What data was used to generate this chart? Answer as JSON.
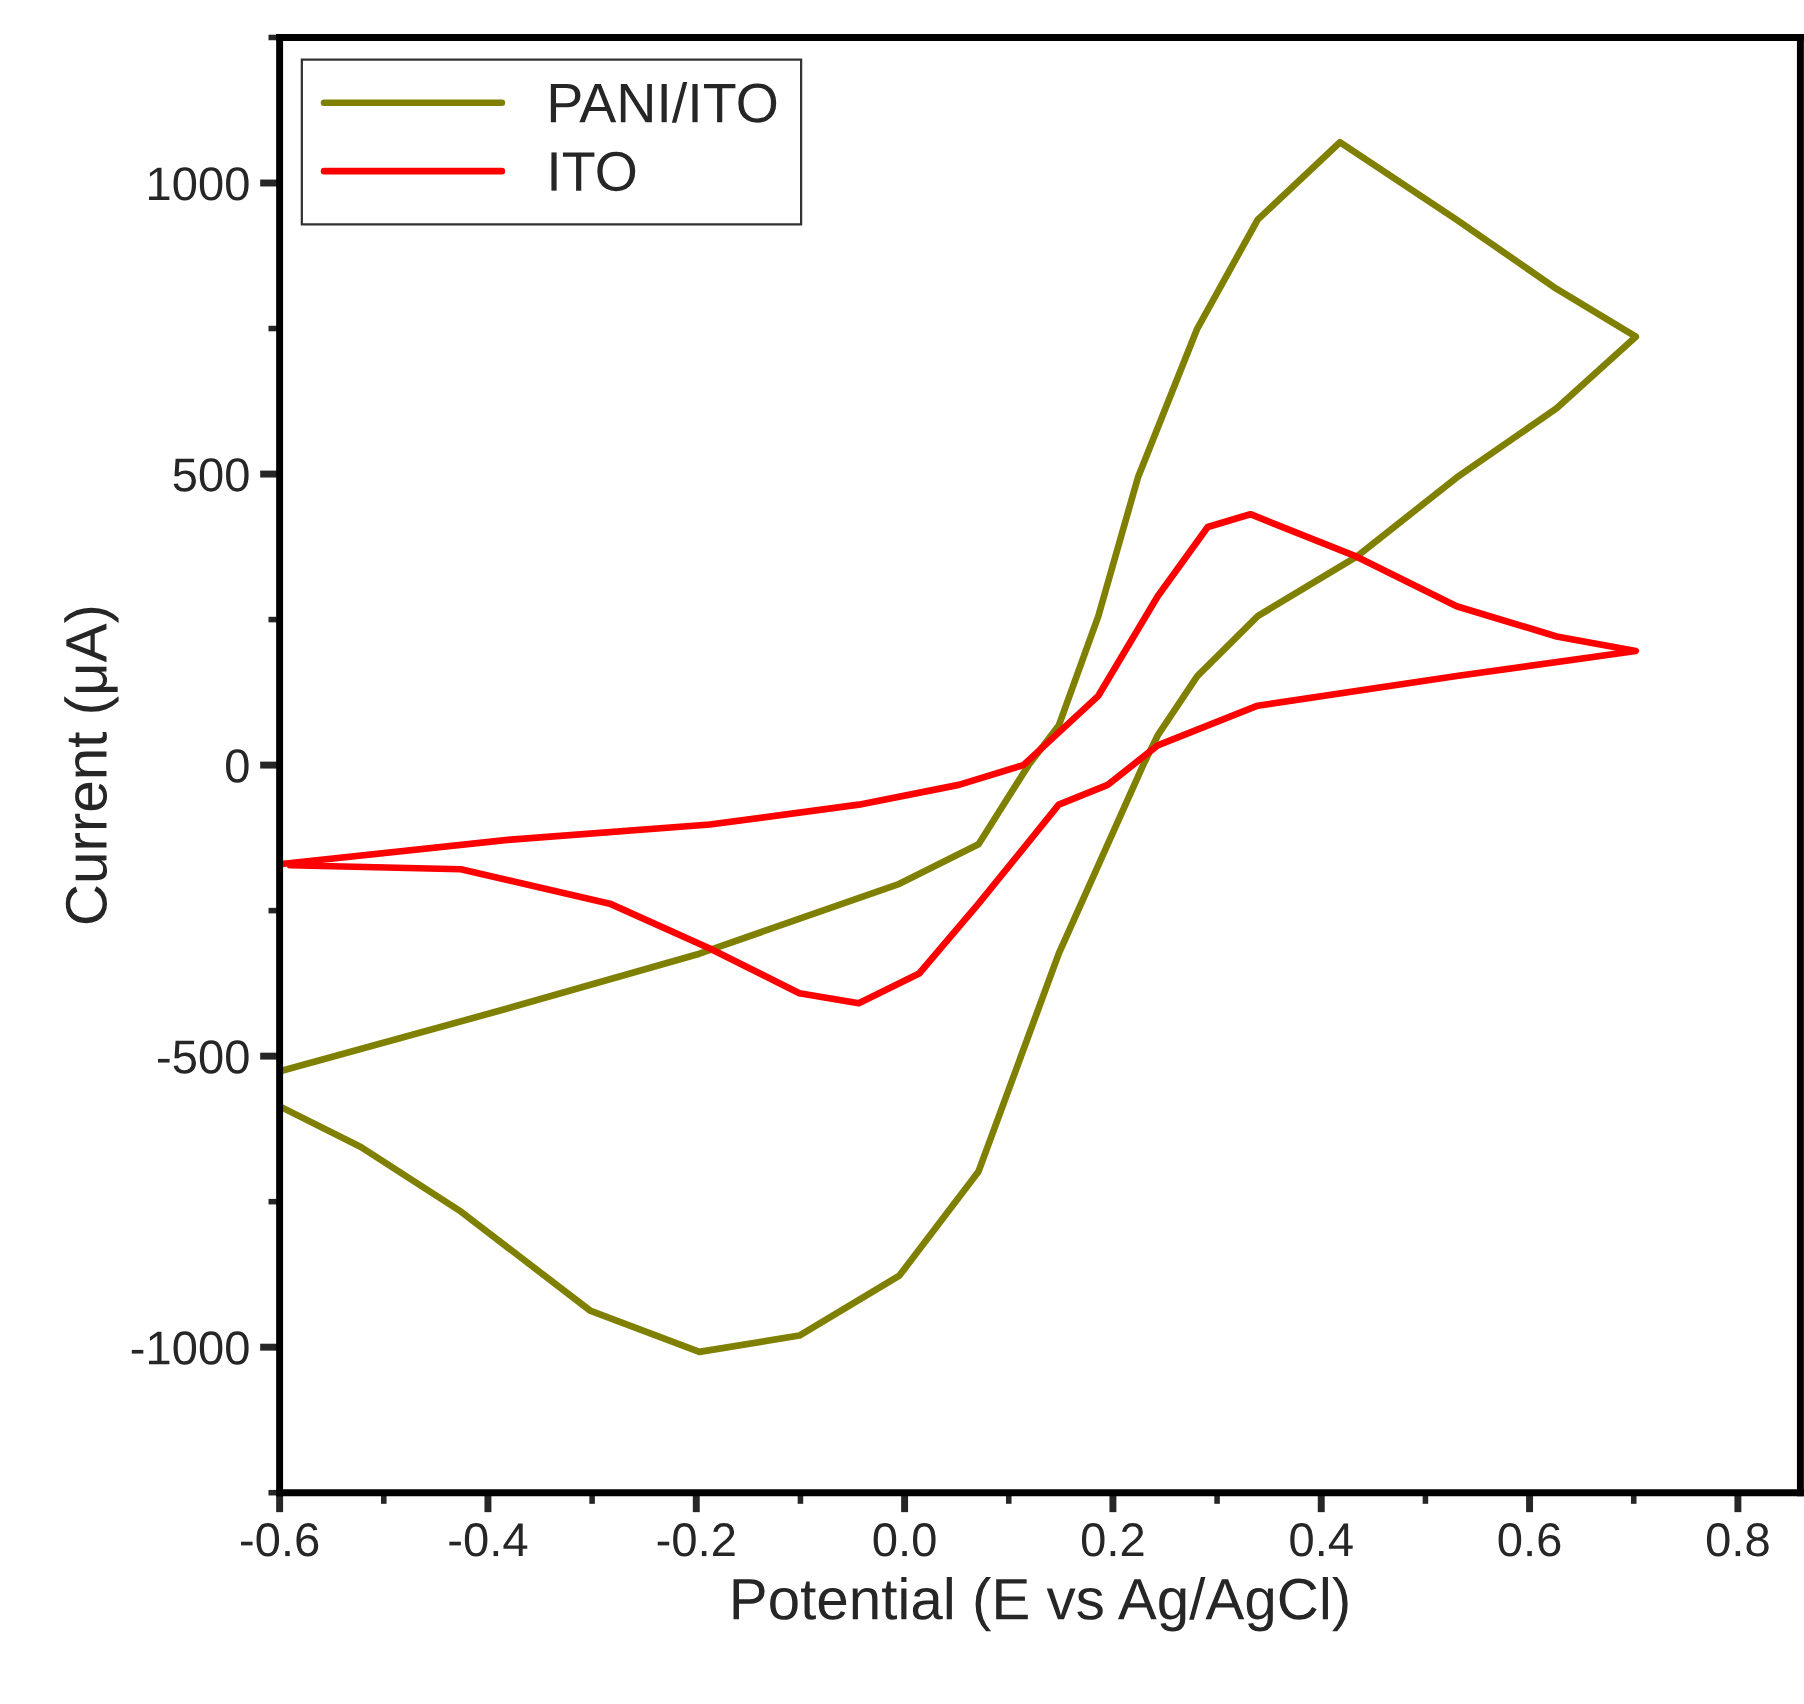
{
  "chart_data": {
    "type": "line",
    "xlabel": "Potential (E vs Ag/AgCl)",
    "ylabel": "Current (μA)",
    "xlim": [
      -0.6,
      0.86
    ],
    "ylim": [
      -1250,
      1250
    ],
    "xticks": [
      -0.6,
      -0.4,
      -0.2,
      {
        "value": 0,
        "label": "0.0"
      },
      0.2,
      0.4,
      0.6,
      0.8
    ],
    "yticks": [
      -1000,
      -500,
      0,
      500,
      1000
    ],
    "grid": false,
    "legend": "top left",
    "marker": "none",
    "line_style": "solid",
    "series": [
      {
        "name": "PANI/ITO",
        "color": "#808000",
        "x": [
          -0.598,
          -0.397,
          -0.197,
          -0.005,
          0.071,
          0.119,
          0.148,
          0.186,
          0.224,
          0.281,
          0.339,
          0.418,
          0.53,
          0.626,
          0.702,
          0.626,
          0.53,
          0.434,
          0.339,
          0.281,
          0.243,
          0.229,
          0.148,
          0.071,
          -0.005,
          -0.101,
          -0.197,
          -0.302,
          -0.426,
          -0.522,
          -0.598
        ],
        "values": [
          -525,
          -426,
          -324,
          -204,
          -136,
          0,
          68,
          256,
          494,
          750,
          937,
          1070,
          937,
          818,
          736,
          613,
          494,
          358,
          256,
          153,
          51,
          0,
          -324,
          -698,
          -877,
          -980,
          -1008,
          -937,
          -767,
          -656,
          -588
        ]
      },
      {
        "name": "ITO",
        "color": "#ff0000",
        "x": [
          -0.598,
          -0.378,
          -0.187,
          -0.044,
          0.052,
          0.114,
          0.186,
          0.243,
          0.291,
          0.332,
          0.434,
          0.53,
          0.626,
          0.702,
          0.53,
          0.339,
          0.243,
          0.195,
          0.148,
          0.071,
          0.014,
          -0.044,
          -0.101,
          -0.187,
          -0.283,
          -0.426,
          -0.59
        ],
        "values": [
          -170,
          -128,
          -102,
          -68,
          -34,
          0,
          119,
          290,
          409,
          431,
          358,
          273,
          221,
          196,
          153,
          102,
          34,
          -34,
          -68,
          -238,
          -358,
          -409,
          -392,
          -315,
          -238,
          -179,
          -172
        ]
      }
    ]
  }
}
